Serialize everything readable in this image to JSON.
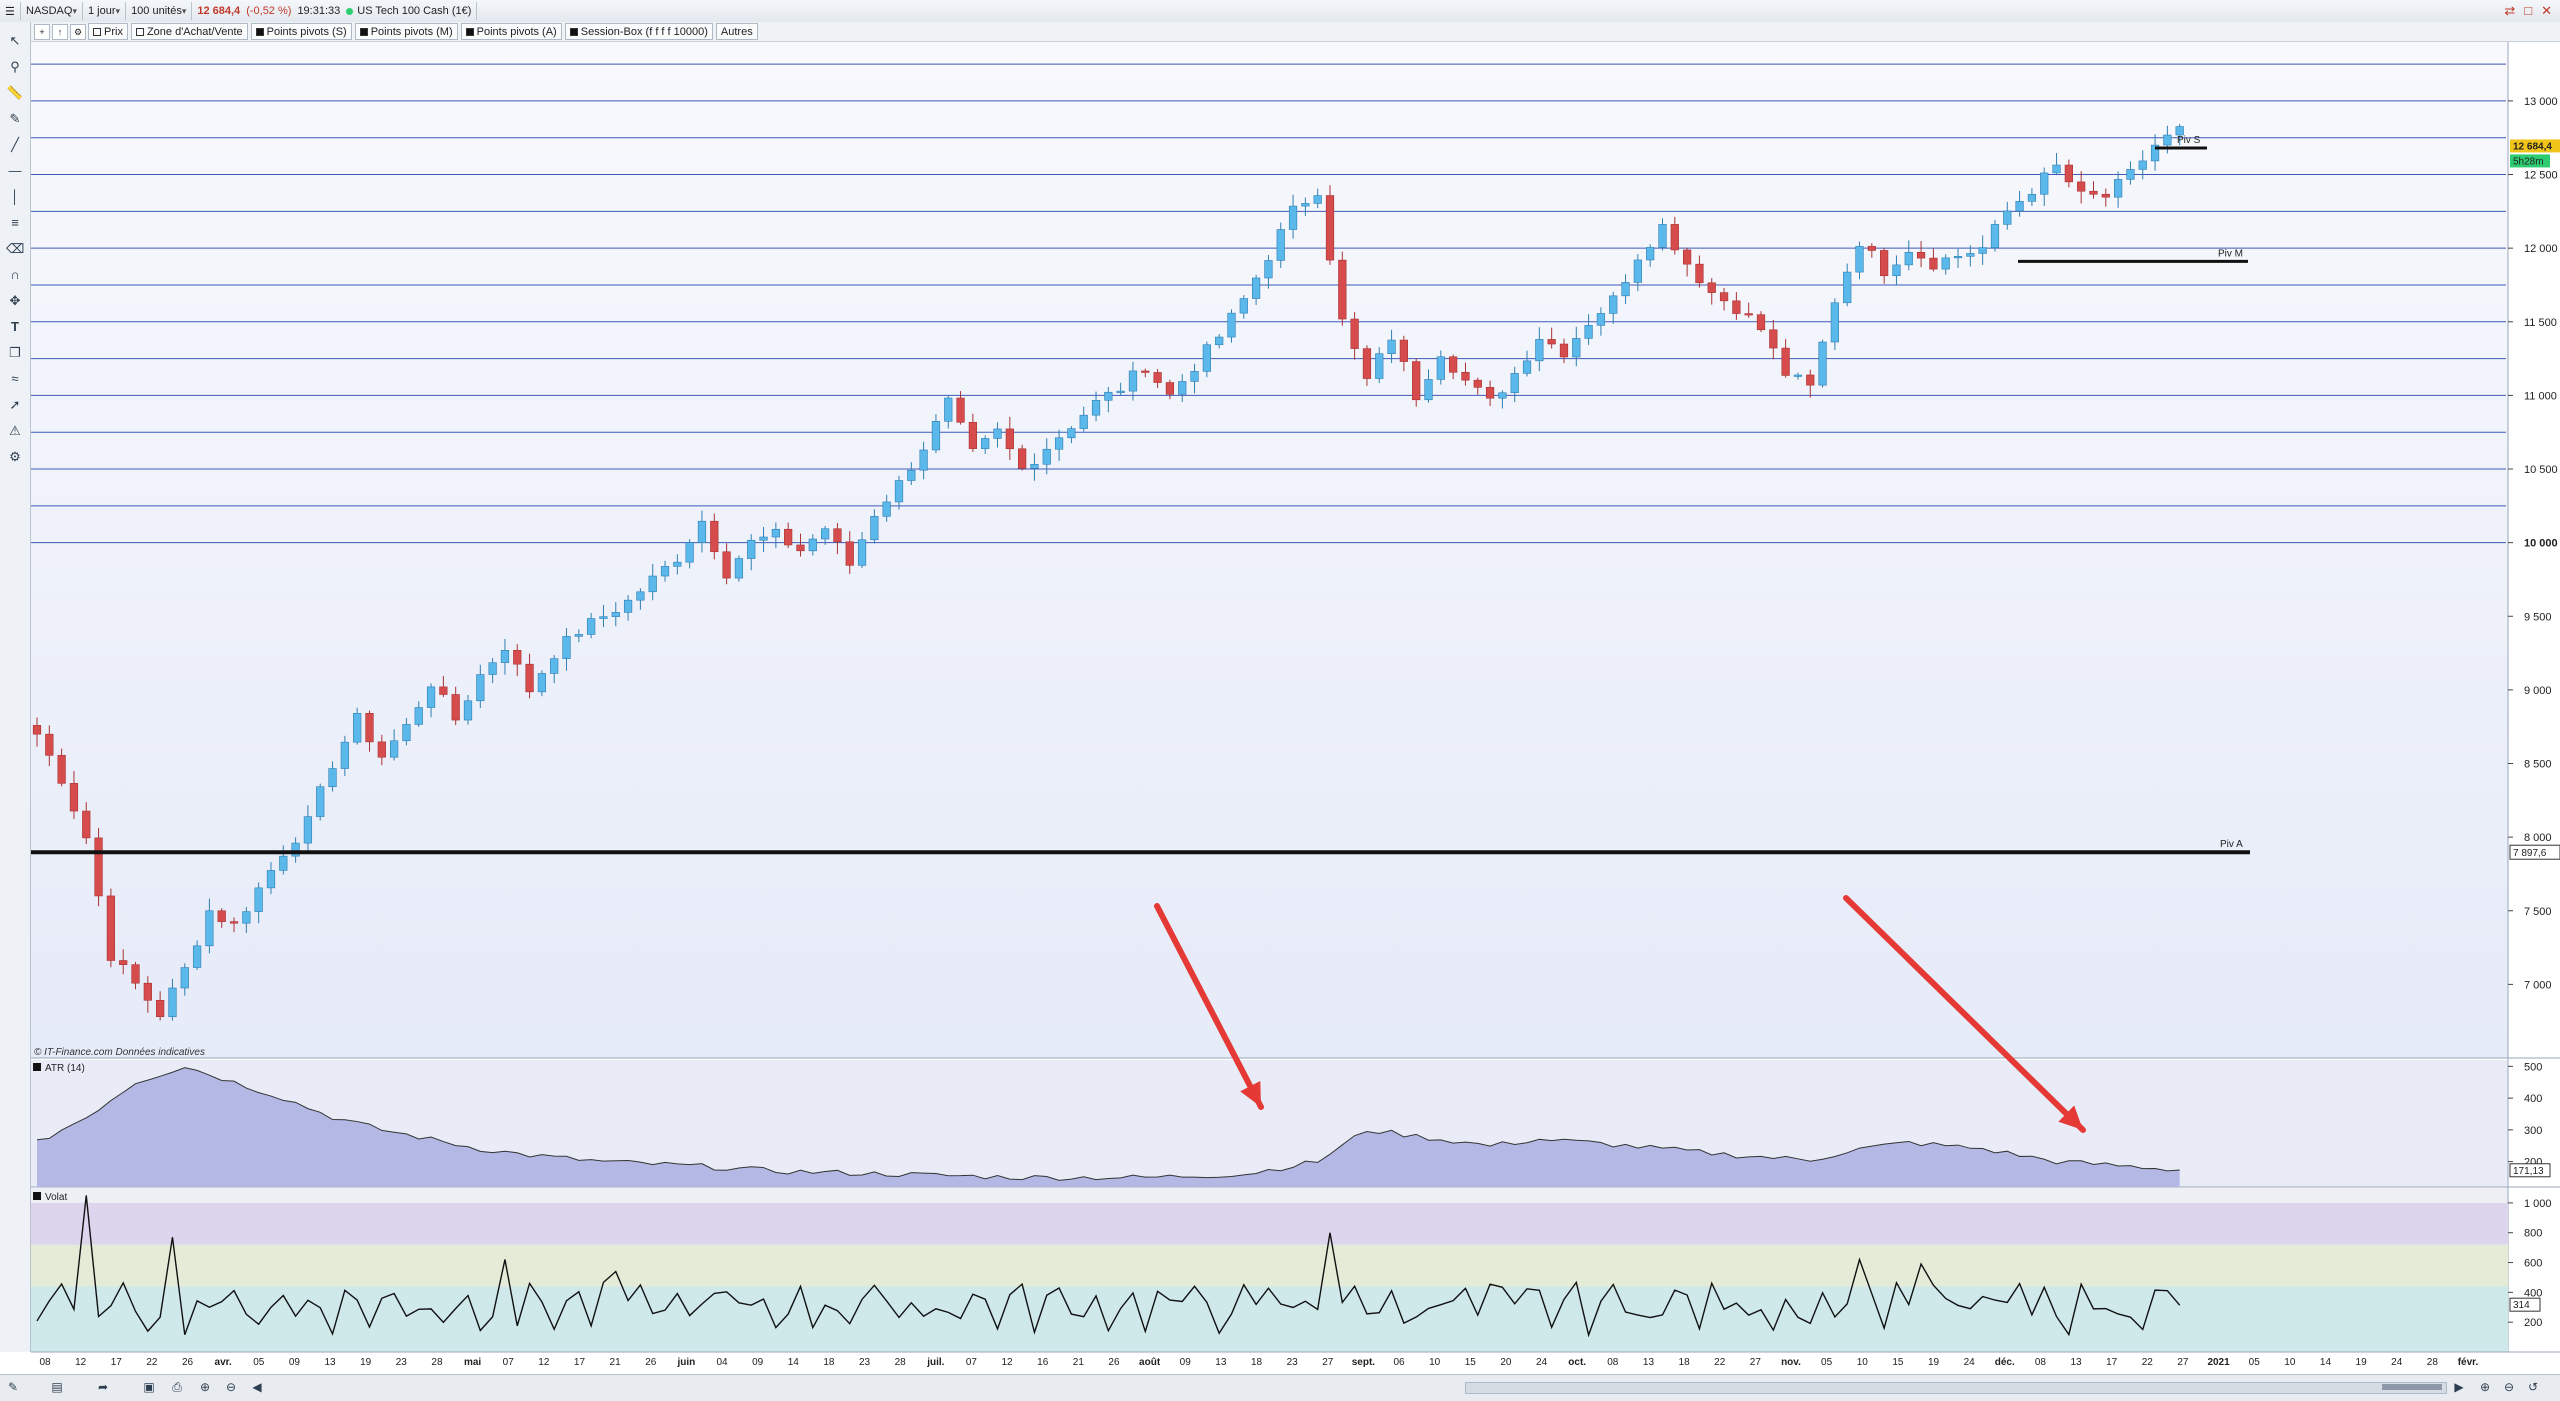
{
  "toolbar": {
    "symbol": "NASDAQ",
    "period": "1 jour",
    "units": "100 unités",
    "last_price": "12 684,4",
    "change": "(-0,52 %)",
    "time": "19:31:33",
    "instrument": "US Tech 100 Cash (1€)"
  },
  "tabs": [
    {
      "label": "Prix",
      "icon": "square-outline-icon"
    },
    {
      "label": "Zone d'Achat/Vente",
      "icon": "square-outline-icon"
    },
    {
      "label": "Points pivots (S)",
      "icon": "square-filled-icon"
    },
    {
      "label": "Points pivots (M)",
      "icon": "square-filled-icon"
    },
    {
      "label": "Points pivots (A)",
      "icon": "square-filled-icon"
    },
    {
      "label": "Session-Box (f f f f 10000)",
      "icon": "square-filled-icon"
    },
    {
      "label": "Autres",
      "icon": ""
    }
  ],
  "sidebar_tools": [
    "cursor-icon",
    "zoom-icon",
    "ruler-icon",
    "pencil-icon",
    "trendline-icon",
    "horizontal-line-icon",
    "vertical-line-icon",
    "channel-icon",
    "eraser-icon",
    "magnet-icon",
    "move-icon",
    "text-icon",
    "copy-icon",
    "fibonacci-icon",
    "arrow-icon",
    "alert-icon",
    "settings-icon"
  ],
  "chart_data": [
    {
      "type": "candlestick",
      "title": "",
      "source_note": "© IT-Finance.com  Données indicatives",
      "ylim": [
        6500,
        13400
      ],
      "y_ticks": [
        "13 000",
        "12 500",
        "12 000",
        "11 500",
        "11 000",
        "10 500",
        "10 000",
        "9 500",
        "9 000",
        "8 500",
        "8 000",
        "7 500",
        "7 000"
      ],
      "y_tick_values": [
        13000,
        12500,
        12000,
        11500,
        11000,
        10500,
        10000,
        9500,
        9000,
        8500,
        8000,
        7500,
        7000
      ],
      "price_badge": "12 684,4",
      "timer_badge": "5h28m",
      "pivot_badge": "7 897,6",
      "x_ticks": [
        "08",
        "12",
        "17",
        "22",
        "26",
        "avr.",
        "05",
        "09",
        "13",
        "19",
        "23",
        "28",
        "mai",
        "07",
        "12",
        "17",
        "21",
        "26",
        "juin",
        "04",
        "09",
        "14",
        "18",
        "23",
        "28",
        "juil.",
        "07",
        "12",
        "16",
        "21",
        "26",
        "août",
        "09",
        "13",
        "18",
        "23",
        "27",
        "sept.",
        "06",
        "10",
        "15",
        "20",
        "24",
        "oct.",
        "08",
        "13",
        "18",
        "22",
        "27",
        "nov.",
        "05",
        "10",
        "15",
        "19",
        "24",
        "déc.",
        "08",
        "13",
        "17",
        "22",
        "27",
        "2021",
        "05",
        "10",
        "14",
        "19",
        "24",
        "28",
        "févr."
      ],
      "grid_lines": [
        13250,
        13000,
        12750,
        12500,
        12250,
        12000,
        11750,
        11500,
        11250,
        11000,
        10750,
        10500,
        10250,
        10000
      ],
      "pivots": [
        {
          "label": "Piv S",
          "value": 12680
        },
        {
          "label": "Piv M",
          "value": 11910
        },
        {
          "label": "Piv A",
          "value": 7897.6
        }
      ],
      "waypoints": [
        [
          0,
          8700
        ],
        [
          2,
          8400
        ],
        [
          4,
          8000
        ],
        [
          6,
          7200
        ],
        [
          8,
          7000
        ],
        [
          10,
          6800
        ],
        [
          12,
          7100
        ],
        [
          14,
          7500
        ],
        [
          16,
          7400
        ],
        [
          18,
          7650
        ],
        [
          20,
          7900
        ],
        [
          22,
          8100
        ],
        [
          24,
          8500
        ],
        [
          26,
          8800
        ],
        [
          28,
          8550
        ],
        [
          30,
          8750
        ],
        [
          32,
          9050
        ],
        [
          34,
          8800
        ],
        [
          36,
          9100
        ],
        [
          38,
          9300
        ],
        [
          40,
          9000
        ],
        [
          42,
          9250
        ],
        [
          44,
          9400
        ],
        [
          46,
          9500
        ],
        [
          48,
          9600
        ],
        [
          50,
          9750
        ],
        [
          52,
          9900
        ],
        [
          54,
          10150
        ],
        [
          56,
          9800
        ],
        [
          58,
          10000
        ],
        [
          60,
          10050
        ],
        [
          62,
          9950
        ],
        [
          64,
          10100
        ],
        [
          66,
          9850
        ],
        [
          68,
          10200
        ],
        [
          70,
          10400
        ],
        [
          72,
          10650
        ],
        [
          74,
          10950
        ],
        [
          76,
          10600
        ],
        [
          78,
          10750
        ],
        [
          80,
          10500
        ],
        [
          82,
          10650
        ],
        [
          84,
          10800
        ],
        [
          86,
          10950
        ],
        [
          88,
          11050
        ],
        [
          90,
          11200
        ],
        [
          92,
          11000
        ],
        [
          94,
          11200
        ],
        [
          96,
          11400
        ],
        [
          98,
          11650
        ],
        [
          100,
          11950
        ],
        [
          102,
          12250
        ],
        [
          104,
          12400
        ],
        [
          106,
          11500
        ],
        [
          108,
          11100
        ],
        [
          110,
          11400
        ],
        [
          112,
          11000
        ],
        [
          114,
          11300
        ],
        [
          116,
          11100
        ],
        [
          118,
          10950
        ],
        [
          120,
          11150
        ],
        [
          122,
          11400
        ],
        [
          124,
          11300
        ],
        [
          126,
          11500
        ],
        [
          128,
          11650
        ],
        [
          130,
          11950
        ],
        [
          132,
          12150
        ],
        [
          134,
          11900
        ],
        [
          136,
          11700
        ],
        [
          138,
          11600
        ],
        [
          140,
          11450
        ],
        [
          142,
          11150
        ],
        [
          144,
          11050
        ],
        [
          146,
          11650
        ],
        [
          148,
          12050
        ],
        [
          150,
          11850
        ],
        [
          152,
          12000
        ],
        [
          154,
          11900
        ],
        [
          156,
          11950
        ],
        [
          158,
          12000
        ],
        [
          160,
          12250
        ],
        [
          162,
          12400
        ],
        [
          164,
          12550
        ],
        [
          166,
          12350
        ],
        [
          168,
          12350
        ],
        [
          170,
          12500
        ],
        [
          172,
          12700
        ],
        [
          174,
          12800
        ],
        [
          175,
          12684
        ]
      ],
      "series_colors": {
        "up": "#5bb8ea",
        "down": "#d64c4c"
      }
    },
    {
      "type": "area",
      "title": "ATR (14)",
      "ylim": [
        120,
        520
      ],
      "y_ticks": [
        "500",
        "400",
        "300",
        "200"
      ],
      "y_tick_values": [
        500,
        400,
        300,
        200
      ],
      "last_value": "171,13",
      "waypoints": [
        [
          0,
          260
        ],
        [
          4,
          340
        ],
        [
          8,
          450
        ],
        [
          12,
          500
        ],
        [
          16,
          450
        ],
        [
          20,
          400
        ],
        [
          24,
          340
        ],
        [
          28,
          300
        ],
        [
          32,
          270
        ],
        [
          36,
          240
        ],
        [
          40,
          220
        ],
        [
          46,
          200
        ],
        [
          54,
          185
        ],
        [
          60,
          170
        ],
        [
          70,
          160
        ],
        [
          80,
          150
        ],
        [
          90,
          150
        ],
        [
          98,
          160
        ],
        [
          104,
          200
        ],
        [
          108,
          300
        ],
        [
          112,
          280
        ],
        [
          118,
          250
        ],
        [
          122,
          270
        ],
        [
          126,
          260
        ],
        [
          132,
          240
        ],
        [
          138,
          220
        ],
        [
          144,
          205
        ],
        [
          148,
          240
        ],
        [
          152,
          260
        ],
        [
          158,
          240
        ],
        [
          164,
          200
        ],
        [
          170,
          185
        ],
        [
          175,
          171
        ]
      ]
    },
    {
      "type": "line",
      "title": "Volat",
      "ylim": [
        0,
        1100
      ],
      "y_ticks": [
        "1 000",
        "800",
        "600",
        "400",
        "200"
      ],
      "y_tick_values": [
        1000,
        800,
        600,
        400,
        200
      ],
      "last_value": "314",
      "zones": [
        {
          "from": 720,
          "to": 1000,
          "color": "#ddd4ee"
        },
        {
          "from": 440,
          "to": 720,
          "color": "#e4ecd8"
        },
        {
          "from": 0,
          "to": 440,
          "color": "#cfe8ea"
        }
      ]
    }
  ]
}
